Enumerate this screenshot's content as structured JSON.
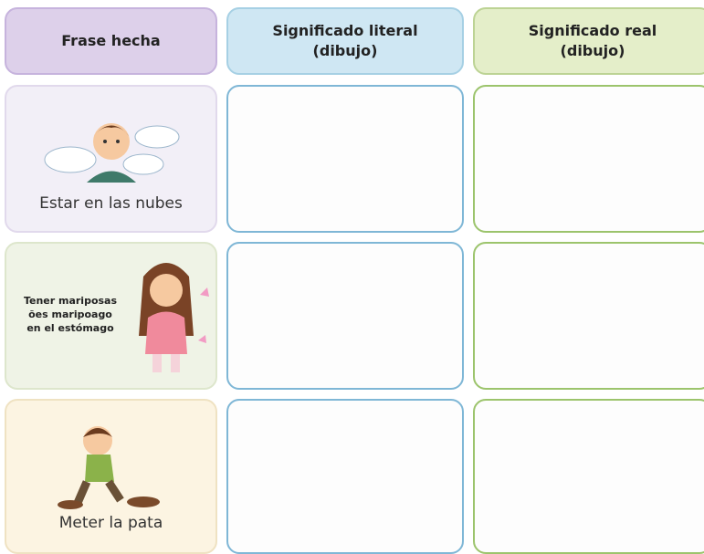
{
  "header": {
    "columns": [
      [
        "Frase hecha"
      ],
      [
        "Significado literal",
        "(dibujo)"
      ],
      [
        "Significado real",
        "(dibujo)"
      ]
    ]
  },
  "rows": [
    {
      "phrase": [
        "Estar en las nubes"
      ]
    },
    {
      "phrase": [
        "Tener mariposas",
        "ões maripoago",
        "en el estómago"
      ]
    },
    {
      "phrase": [
        "Meter la pata"
      ]
    }
  ]
}
